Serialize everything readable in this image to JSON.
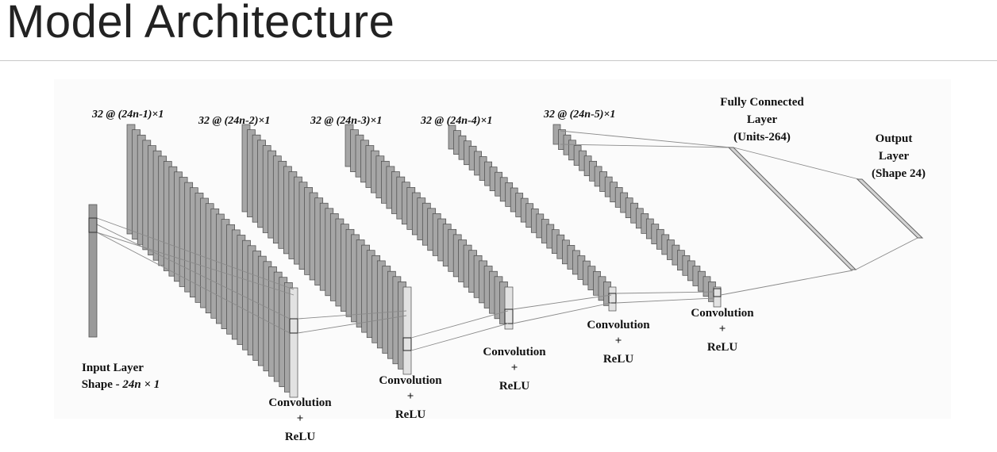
{
  "page": {
    "title": "Model Architecture"
  },
  "diagram": {
    "input": {
      "line1": "Input Layer",
      "line2_prefix": "Shape - ",
      "line2_shape": "24n × 1"
    },
    "conv_dims": [
      "32 @ (24n-1)×1",
      "32 @ (24n-2)×1",
      "32 @ (24n-3)×1",
      "32 @ (24n-4)×1",
      "32 @ (24n-5)×1"
    ],
    "conv_label": {
      "line1": "Convolution",
      "line2": "+",
      "line3": "ReLU"
    },
    "fc": {
      "line1": "Fully Connected",
      "line2": "Layer",
      "line3": "(Units-264)"
    },
    "output": {
      "line1": "Output",
      "line2": "Layer",
      "line3": "(Shape 24)"
    }
  }
}
